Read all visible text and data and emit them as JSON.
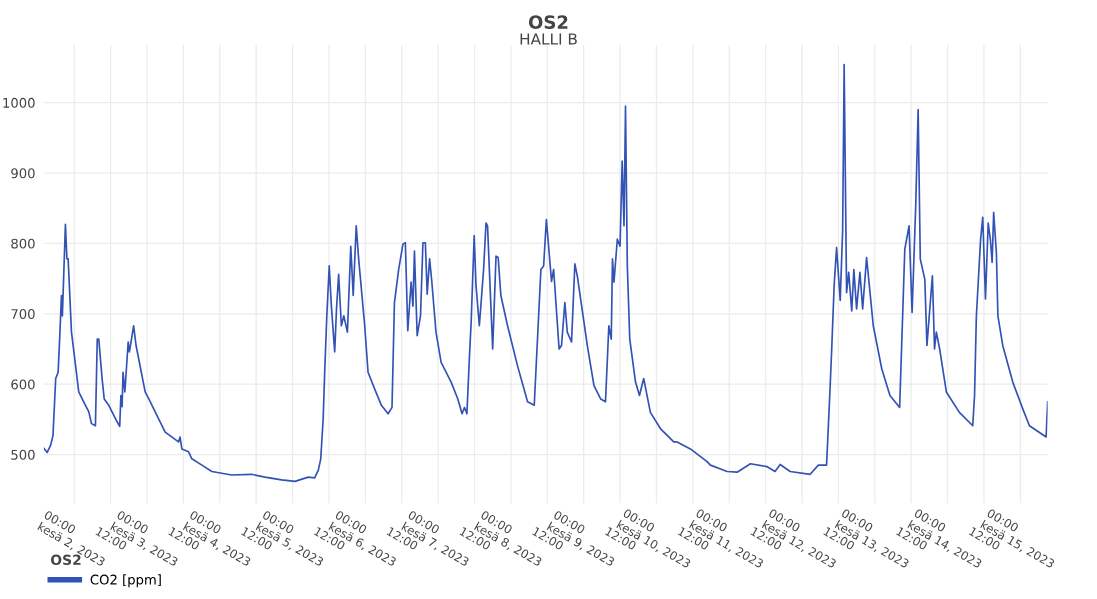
{
  "chart_data": {
    "type": "line",
    "title": "OS2",
    "subtitle": "HALLI B",
    "legend_title": "OS2",
    "legend": "bottom left",
    "grid": true,
    "marker": "none",
    "line_style": "solid",
    "xlim": [
      "2023-06-01T14:00",
      "2023-06-15T09:00"
    ],
    "ylim": [
      431,
      1082
    ],
    "yticks": [
      500,
      600,
      700,
      800,
      900,
      1000
    ],
    "xticks": [
      {
        "value": "2023-06-02T00:00",
        "label": "00:00\nkesä 2, 2023"
      },
      {
        "value": "2023-06-02T12:00",
        "label": "12:00"
      },
      {
        "value": "2023-06-03T00:00",
        "label": "00:00\nkesä 3, 2023"
      },
      {
        "value": "2023-06-03T12:00",
        "label": "12:00"
      },
      {
        "value": "2023-06-04T00:00",
        "label": "00:00\nkesä 4, 2023"
      },
      {
        "value": "2023-06-04T12:00",
        "label": "12:00"
      },
      {
        "value": "2023-06-05T00:00",
        "label": "00:00\nkesä 5, 2023"
      },
      {
        "value": "2023-06-05T12:00",
        "label": "12:00"
      },
      {
        "value": "2023-06-06T00:00",
        "label": "00:00\nkesä 6, 2023"
      },
      {
        "value": "2023-06-06T12:00",
        "label": "12:00"
      },
      {
        "value": "2023-06-07T00:00",
        "label": "00:00\nkesä 7, 2023"
      },
      {
        "value": "2023-06-07T12:00",
        "label": "12:00"
      },
      {
        "value": "2023-06-08T00:00",
        "label": "00:00\nkesä 8, 2023"
      },
      {
        "value": "2023-06-08T12:00",
        "label": "12:00"
      },
      {
        "value": "2023-06-09T00:00",
        "label": "00:00\nkesä 9, 2023"
      },
      {
        "value": "2023-06-09T12:00",
        "label": "12:00"
      },
      {
        "value": "2023-06-10T00:00",
        "label": "00:00\nkesä 10, 2023"
      },
      {
        "value": "2023-06-10T12:00",
        "label": "12:00"
      },
      {
        "value": "2023-06-11T00:00",
        "label": "00:00\nkesä 11, 2023"
      },
      {
        "value": "2023-06-11T12:00",
        "label": "12:00"
      },
      {
        "value": "2023-06-12T00:00",
        "label": "00:00\nkesä 12, 2023"
      },
      {
        "value": "2023-06-12T12:00",
        "label": "12:00"
      },
      {
        "value": "2023-06-13T00:00",
        "label": "00:00\nkesä 13, 2023"
      },
      {
        "value": "2023-06-13T12:00",
        "label": "12:00"
      },
      {
        "value": "2023-06-14T00:00",
        "label": "00:00\nkesä 14, 2023"
      },
      {
        "value": "2023-06-14T12:00",
        "label": "12:00"
      },
      {
        "value": "2023-06-15T00:00",
        "label": "00:00\nkesä 15, 2023"
      }
    ],
    "series": [
      {
        "name": "CO2 [ppm]",
        "color": "#3352b5",
        "x": [
          "2023-06-01T14:00",
          "2023-06-01T15:06",
          "2023-06-01T16:12",
          "2023-06-01T17:00",
          "2023-06-01T17:54",
          "2023-06-01T18:42",
          "2023-06-01T19:12",
          "2023-06-01T19:48",
          "2023-06-01T20:06",
          "2023-06-01T21:06",
          "2023-06-01T21:36",
          "2023-06-01T22:00",
          "2023-06-01T23:06",
          "2023-06-01T23:54",
          "2023-06-02T01:30",
          "2023-06-02T03:42",
          "2023-06-02T04:48",
          "2023-06-02T05:42",
          "2023-06-02T07:00",
          "2023-06-02T07:36",
          "2023-06-02T08:06",
          "2023-06-02T09:12",
          "2023-06-02T09:54",
          "2023-06-02T11:24",
          "2023-06-02T14:06",
          "2023-06-02T15:00",
          "2023-06-02T15:24",
          "2023-06-02T15:48",
          "2023-06-02T16:06",
          "2023-06-02T16:42",
          "2023-06-02T17:48",
          "2023-06-02T18:12",
          "2023-06-02T19:36",
          "2023-06-02T20:24",
          "2023-06-02T23:24",
          "2023-06-03T00:36",
          "2023-06-03T03:48",
          "2023-06-03T06:00",
          "2023-06-03T10:24",
          "2023-06-03T10:54",
          "2023-06-03T11:30",
          "2023-06-03T13:42",
          "2023-06-03T14:48",
          "2023-06-03T18:06",
          "2023-06-03T21:24",
          "2023-06-04T03:54",
          "2023-06-04T10:30",
          "2023-06-04T14:54",
          "2023-06-04T20:24",
          "2023-06-05T00:48",
          "2023-06-05T05:12",
          "2023-06-05T07:18",
          "2023-06-05T08:30",
          "2023-06-05T09:18",
          "2023-06-05T10:06",
          "2023-06-05T10:36",
          "2023-06-05T11:18",
          "2023-06-05T12:06",
          "2023-06-05T12:48",
          "2023-06-05T13:54",
          "2023-06-05T14:30",
          "2023-06-05T15:12",
          "2023-06-05T16:06",
          "2023-06-05T16:54",
          "2023-06-05T18:06",
          "2023-06-05T19:12",
          "2023-06-05T20:00",
          "2023-06-05T21:00",
          "2023-06-05T21:48",
          "2023-06-05T23:48",
          "2023-06-06T00:54",
          "2023-06-06T03:06",
          "2023-06-06T05:18",
          "2023-06-06T07:30",
          "2023-06-06T08:48",
          "2023-06-06T09:36",
          "2023-06-06T11:00",
          "2023-06-06T12:24",
          "2023-06-06T13:12",
          "2023-06-06T14:00",
          "2023-06-06T15:06",
          "2023-06-06T15:42",
          "2023-06-06T16:12",
          "2023-06-06T17:06",
          "2023-06-06T18:12",
          "2023-06-06T19:00",
          "2023-06-06T19:48",
          "2023-06-06T20:24",
          "2023-06-06T21:12",
          "2023-06-06T21:54",
          "2023-06-06T23:18",
          "2023-06-07T01:00",
          "2023-06-07T04:18",
          "2023-06-07T06:30",
          "2023-06-07T07:54",
          "2023-06-07T08:42",
          "2023-06-07T09:30",
          "2023-06-07T10:18",
          "2023-06-07T10:54",
          "2023-06-07T11:54",
          "2023-06-07T12:30",
          "2023-06-07T13:36",
          "2023-06-07T15:00",
          "2023-06-07T15:48",
          "2023-06-07T16:18",
          "2023-06-07T18:00",
          "2023-06-07T19:06",
          "2023-06-07T19:48",
          "2023-06-07T20:42",
          "2023-06-07T22:54",
          "2023-06-08T02:12",
          "2023-06-08T05:30",
          "2023-06-08T07:42",
          "2023-06-08T09:54",
          "2023-06-08T10:48",
          "2023-06-08T11:42",
          "2023-06-08T13:24",
          "2023-06-08T14:06",
          "2023-06-08T15:54",
          "2023-06-08T16:42",
          "2023-06-08T17:48",
          "2023-06-08T18:36",
          "2023-06-08T20:00",
          "2023-06-08T21:06",
          "2023-06-08T21:54",
          "2023-06-09T01:12",
          "2023-06-09T03:24",
          "2023-06-09T05:36",
          "2023-06-09T07:12",
          "2023-06-09T08:18",
          "2023-06-09T09:06",
          "2023-06-09T09:30",
          "2023-06-09T10:00",
          "2023-06-09T11:06",
          "2023-06-09T12:00",
          "2023-06-09T12:42",
          "2023-06-09T13:18",
          "2023-06-09T13:48",
          "2023-06-09T14:24",
          "2023-06-09T15:12",
          "2023-06-09T17:06",
          "2023-06-09T18:24",
          "2023-06-09T19:48",
          "2023-06-09T22:00",
          "2023-06-10T01:18",
          "2023-06-10T05:42",
          "2023-06-10T06:48",
          "2023-06-10T11:12",
          "2023-06-10T16:42",
          "2023-06-10T17:48",
          "2023-06-10T23:18",
          "2023-06-11T02:36",
          "2023-06-11T07:00",
          "2023-06-11T12:24",
          "2023-06-11T15:06",
          "2023-06-11T16:48",
          "2023-06-11T20:06",
          "2023-06-12T02:42",
          "2023-06-12T05:24",
          "2023-06-12T08:06",
          "2023-06-12T09:12",
          "2023-06-12T09:48",
          "2023-06-12T10:36",
          "2023-06-12T11:24",
          "2023-06-12T12:36",
          "2023-06-12T13:24",
          "2023-06-12T13:54",
          "2023-06-12T14:42",
          "2023-06-12T15:24",
          "2023-06-12T16:24",
          "2023-06-12T17:06",
          "2023-06-12T18:00",
          "2023-06-12T19:06",
          "2023-06-12T20:00",
          "2023-06-12T21:18",
          "2023-06-12T23:30",
          "2023-06-13T02:18",
          "2023-06-13T05:00",
          "2023-06-13T08:12",
          "2023-06-13T09:54",
          "2023-06-13T11:18",
          "2023-06-13T12:18",
          "2023-06-13T13:30",
          "2023-06-13T14:18",
          "2023-06-13T15:00",
          "2023-06-13T16:30",
          "2023-06-13T17:12",
          "2023-06-13T19:00",
          "2023-06-13T19:42",
          "2023-06-13T20:18",
          "2023-06-13T21:24",
          "2023-06-13T23:36",
          "2023-06-14T03:54",
          "2023-06-14T08:18",
          "2023-06-14T08:54",
          "2023-06-14T09:30",
          "2023-06-14T10:54",
          "2023-06-14T11:36",
          "2023-06-14T12:30",
          "2023-06-14T13:24",
          "2023-06-14T14:06",
          "2023-06-14T14:42",
          "2023-06-14T15:12",
          "2023-06-14T16:06",
          "2023-06-14T16:36",
          "2023-06-14T18:12",
          "2023-06-14T21:30",
          "2023-06-15T00:48",
          "2023-06-15T03:00",
          "2023-06-15T08:30",
          "2023-06-15T09:00"
        ],
        "values": [
          509,
          503,
          513,
          527,
          608,
          617,
          664,
          726,
          697,
          827,
          778,
          778,
          674,
          646,
          589,
          570,
          561,
          544,
          541,
          664,
          664,
          608,
          579,
          570,
          547,
          540,
          584,
          568,
          617,
          589,
          660,
          646,
          683,
          655,
          589,
          579,
          551,
          532,
          518,
          525,
          508,
          504,
          494,
          485,
          476,
          471,
          472,
          468,
          464,
          462,
          468,
          467,
          478,
          494,
          551,
          617,
          697,
          768,
          711,
          646,
          707,
          756,
          683,
          697,
          674,
          796,
          726,
          825,
          778,
          683,
          617,
          593,
          570,
          558,
          567,
          716,
          763,
          799,
          801,
          676,
          745,
          711,
          789,
          669,
          697,
          801,
          801,
          728,
          778,
          747,
          674,
          631,
          603,
          579,
          558,
          567,
          558,
          636,
          688,
          811,
          740,
          683,
          763,
          829,
          825,
          650,
          782,
          780,
          726,
          683,
          626,
          575,
          570,
          763,
          768,
          834,
          746,
          763,
          650,
          655,
          716,
          674,
          660,
          771,
          754,
          655,
          598,
          579,
          575,
          683,
          664,
          778,
          745,
          806,
          796,
          917,
          825,
          995,
          768,
          664,
          603,
          584,
          608,
          560,
          537,
          518,
          518,
          508,
          490,
          485,
          476,
          475,
          487,
          483,
          476,
          486,
          476,
          472,
          485,
          485,
          589,
          650,
          740,
          794,
          719,
          818,
          1054,
          730,
          759,
          704,
          763,
          707,
          759,
          707,
          780,
          683,
          622,
          584,
          567,
          792,
          825,
          702,
          853,
          990,
          778,
          749,
          655,
          754,
          650,
          674,
          650,
          589,
          560,
          541,
          584,
          697,
          806,
          837,
          721,
          829,
          806,
          773,
          844,
          787,
          697,
          655,
          603,
          565,
          541,
          525,
          575
        ]
      }
    ]
  }
}
